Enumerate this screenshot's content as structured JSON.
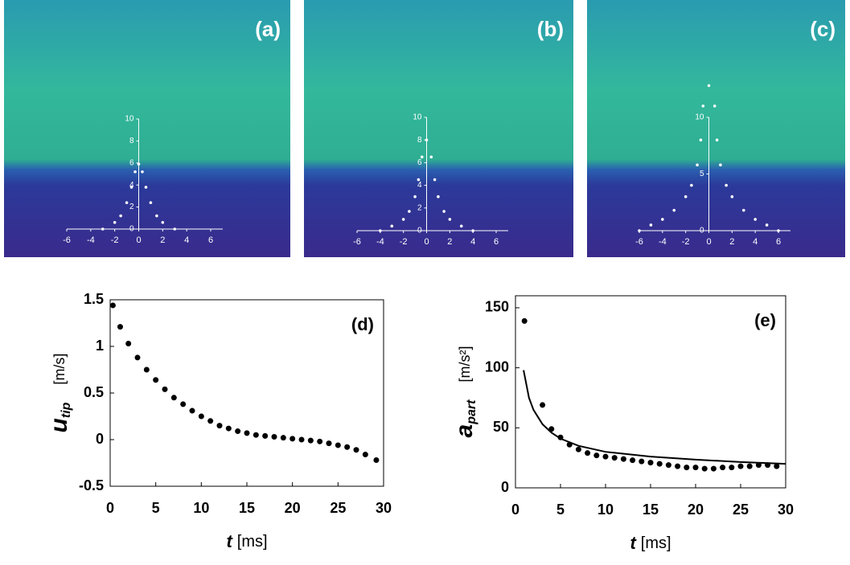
{
  "chart_data": [
    {
      "type": "image",
      "label": "(a)",
      "xlim": [
        -6,
        6
      ],
      "ylim": [
        0,
        10
      ],
      "xticks": [
        -6,
        -4,
        -2,
        0,
        2,
        4,
        6
      ],
      "yticks": [
        0,
        2,
        4,
        6,
        8,
        10
      ],
      "series": [
        {
          "name": null,
          "color": "#ffffff",
          "x": [
            -3,
            -2,
            -1.5,
            -1,
            -0.6,
            -0.3,
            0,
            0.3,
            0.6,
            1,
            1.5,
            2,
            3
          ],
          "values": [
            0,
            0.6,
            1.2,
            2.4,
            3.8,
            5.2,
            5.9,
            5.2,
            3.8,
            2.4,
            1.2,
            0.6,
            0
          ]
        }
      ]
    },
    {
      "type": "image",
      "label": "(b)",
      "xlim": [
        -6,
        6
      ],
      "ylim": [
        0,
        10
      ],
      "xticks": [
        -6,
        -4,
        -2,
        0,
        2,
        4,
        6
      ],
      "yticks": [
        0,
        2,
        4,
        6,
        8,
        10
      ],
      "series": [
        {
          "name": null,
          "color": "#ffffff",
          "x": [
            -4,
            -3,
            -2,
            -1.5,
            -1,
            -0.7,
            -0.4,
            0,
            0.4,
            0.7,
            1,
            1.5,
            2,
            3,
            4
          ],
          "values": [
            0,
            0.4,
            1,
            1.7,
            3,
            4.5,
            6.5,
            8,
            6.5,
            4.5,
            3,
            1.7,
            1,
            0.4,
            0
          ]
        }
      ]
    },
    {
      "type": "image",
      "label": "(c)",
      "xlim": [
        -6,
        6
      ],
      "ylim": [
        0,
        10
      ],
      "xticks": [
        -6,
        -4,
        -2,
        0,
        2,
        4,
        6
      ],
      "yticks": [
        0,
        5,
        10
      ],
      "series": [
        {
          "name": null,
          "color": "#ffffff",
          "x": [
            -6,
            -5,
            -4,
            -3,
            -2,
            -1.5,
            -1,
            -0.7,
            -0.5,
            0,
            0.5,
            0.7,
            1,
            1.5,
            2,
            3,
            4,
            5,
            6
          ],
          "values": [
            0,
            0.5,
            1,
            1.8,
            3,
            4,
            5.8,
            8,
            11,
            12.8,
            11,
            8,
            5.8,
            4,
            3,
            1.8,
            1,
            0.5,
            0
          ]
        }
      ]
    },
    {
      "type": "scatter",
      "label": "(d)",
      "xlim": [
        0,
        30
      ],
      "ylim": [
        -0.5,
        1.5
      ],
      "xticks": [
        0,
        5,
        10,
        15,
        20,
        25,
        30
      ],
      "yticks": [
        -0.5,
        0,
        0.5,
        1,
        1.5
      ],
      "xlabel": {
        "symbol": "t",
        "unit": "[ms]"
      },
      "ylabel": {
        "symbol": "u",
        "subscript": "tip",
        "unit": "[m/s]"
      },
      "series": [
        {
          "name": null,
          "kind": "points",
          "color": "#000000",
          "x": [
            0.3,
            1.1,
            2,
            3,
            4,
            5,
            6,
            7,
            8,
            9,
            10,
            11,
            12,
            13,
            14,
            15,
            16,
            17,
            18,
            19,
            20,
            21,
            22,
            23,
            24,
            25,
            26,
            27,
            28,
            29.2
          ],
          "values": [
            1.44,
            1.21,
            1.03,
            0.88,
            0.75,
            0.64,
            0.54,
            0.45,
            0.38,
            0.31,
            0.25,
            0.2,
            0.15,
            0.12,
            0.09,
            0.07,
            0.05,
            0.04,
            0.03,
            0.02,
            0.01,
            0,
            -0.01,
            -0.02,
            -0.04,
            -0.06,
            -0.08,
            -0.11,
            -0.16,
            -0.22
          ]
        }
      ]
    },
    {
      "type": "scatter",
      "label": "(e)",
      "xlim": [
        0,
        30
      ],
      "ylim": [
        0,
        160
      ],
      "xticks": [
        0,
        5,
        10,
        15,
        20,
        25,
        30
      ],
      "yticks": [
        0,
        50,
        100,
        150
      ],
      "xlabel": {
        "symbol": "t",
        "unit": "[ms]"
      },
      "ylabel": {
        "symbol": "a",
        "subscript": "part",
        "unit": "[m/s²]"
      },
      "series": [
        {
          "name": null,
          "kind": "points",
          "color": "#000000",
          "x": [
            1,
            3,
            4,
            5,
            6,
            7,
            8,
            9,
            10,
            11,
            12,
            13,
            14,
            15,
            16,
            17,
            18,
            19,
            20,
            21,
            22,
            23,
            24,
            25,
            26,
            27,
            28,
            29
          ],
          "values": [
            139,
            69,
            49,
            42,
            36,
            32,
            29,
            27,
            26,
            25,
            24,
            23,
            22,
            21,
            20,
            19,
            18,
            17,
            17,
            16,
            16,
            17,
            17,
            18,
            18,
            19,
            19,
            18
          ]
        },
        {
          "name": null,
          "kind": "line",
          "color": "#000000",
          "x": [
            0.9,
            1.5,
            2,
            3,
            4,
            5,
            7,
            10,
            15,
            20,
            25,
            30
          ],
          "values": [
            98,
            75,
            65,
            53,
            46,
            41,
            35,
            30,
            26,
            23.5,
            21.5,
            20
          ]
        }
      ]
    }
  ]
}
